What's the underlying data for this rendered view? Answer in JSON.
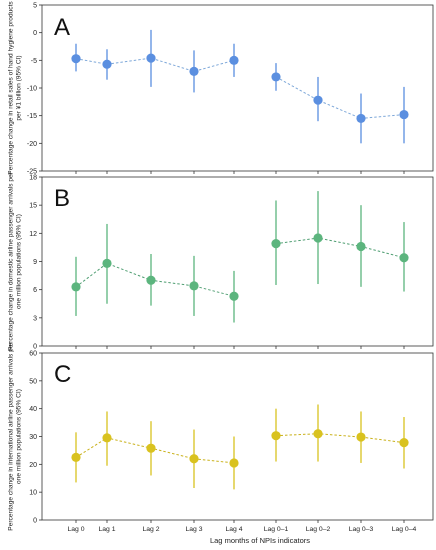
{
  "x_axis_title": "Lag months of NPIs indicators",
  "chart_data": [
    {
      "type": "scatter",
      "panel_label": "A",
      "ylabel": "Percentage change in retail sales of hand hygiene products per ¥1 billion (95% CI)",
      "ylim": [
        -25,
        5
      ],
      "yticks": [
        5,
        0,
        -5,
        -10,
        -15,
        -20,
        -25
      ],
      "categories": [
        "Lag 0",
        "Lag 1",
        "Lag 2",
        "Lag 3",
        "Lag 4",
        "Lag 0–1",
        "Lag 0–2",
        "Lag 0–3",
        "Lag 0–4"
      ],
      "groups": [
        [
          0,
          1,
          2,
          3,
          4
        ],
        [
          5,
          6,
          7,
          8
        ]
      ],
      "series": [
        {
          "estimate": [
            -4.7,
            -5.7,
            -4.6,
            -7.0,
            -5.0,
            -8.0,
            -12.2,
            -15.5,
            -14.8
          ],
          "lower": [
            -7.0,
            -8.5,
            -9.8,
            -10.8,
            -8.0,
            -10.5,
            -16.0,
            -20.0,
            -20.0
          ],
          "upper": [
            -2.0,
            -3.0,
            0.5,
            -3.2,
            -2.0,
            -5.5,
            -8.0,
            -11.0,
            -9.8
          ]
        }
      ],
      "marker_color": "#5b8fe0",
      "line_color": "#7ea8d9",
      "grid": false
    },
    {
      "type": "scatter",
      "panel_label": "B",
      "ylabel": "Percentage change in domestic airline passenger arrivals per one million populations (95% CI)",
      "ylim": [
        0,
        18
      ],
      "yticks": [
        0,
        3,
        6,
        9,
        12,
        15,
        18
      ],
      "categories": [
        "Lag 0",
        "Lag 1",
        "Lag 2",
        "Lag 3",
        "Lag 4",
        "Lag 0–1",
        "Lag 0–2",
        "Lag 0–3",
        "Lag 0–4"
      ],
      "groups": [
        [
          0,
          1,
          2,
          3,
          4
        ],
        [
          5,
          6,
          7,
          8
        ]
      ],
      "series": [
        {
          "estimate": [
            6.3,
            8.8,
            7.0,
            6.4,
            5.3,
            10.9,
            11.5,
            10.6,
            9.4
          ],
          "lower": [
            3.2,
            4.5,
            4.3,
            3.2,
            2.5,
            6.5,
            6.6,
            6.3,
            5.8
          ],
          "upper": [
            9.5,
            13.0,
            9.8,
            9.6,
            8.0,
            15.5,
            16.5,
            15.0,
            13.2
          ]
        }
      ],
      "marker_color": "#5cb57e",
      "line_color": "#4f9e72",
      "grid": false
    },
    {
      "type": "scatter",
      "panel_label": "C",
      "ylabel": "Percentage change in international airline passenger arrivals per one million populations (95% CI)",
      "ylim": [
        0,
        60
      ],
      "yticks": [
        0,
        10,
        20,
        30,
        40,
        50,
        60
      ],
      "categories": [
        "Lag 0",
        "Lag 1",
        "Lag 2",
        "Lag 3",
        "Lag 4",
        "Lag 0–1",
        "Lag 0–2",
        "Lag 0–3",
        "Lag 0–4"
      ],
      "groups": [
        [
          0,
          1,
          2,
          3,
          4
        ],
        [
          5,
          6,
          7,
          8
        ]
      ],
      "series": [
        {
          "estimate": [
            22.5,
            29.5,
            25.8,
            22.0,
            20.5,
            30.3,
            31.0,
            29.8,
            27.8
          ],
          "lower": [
            13.5,
            19.5,
            16.0,
            11.5,
            11.0,
            21.0,
            21.0,
            20.5,
            18.5
          ],
          "upper": [
            31.5,
            39.0,
            35.5,
            32.5,
            30.0,
            40.0,
            41.5,
            39.0,
            37.0
          ]
        }
      ],
      "marker_color": "#d9c21f",
      "line_color": "#c9b11a",
      "grid": false
    }
  ]
}
